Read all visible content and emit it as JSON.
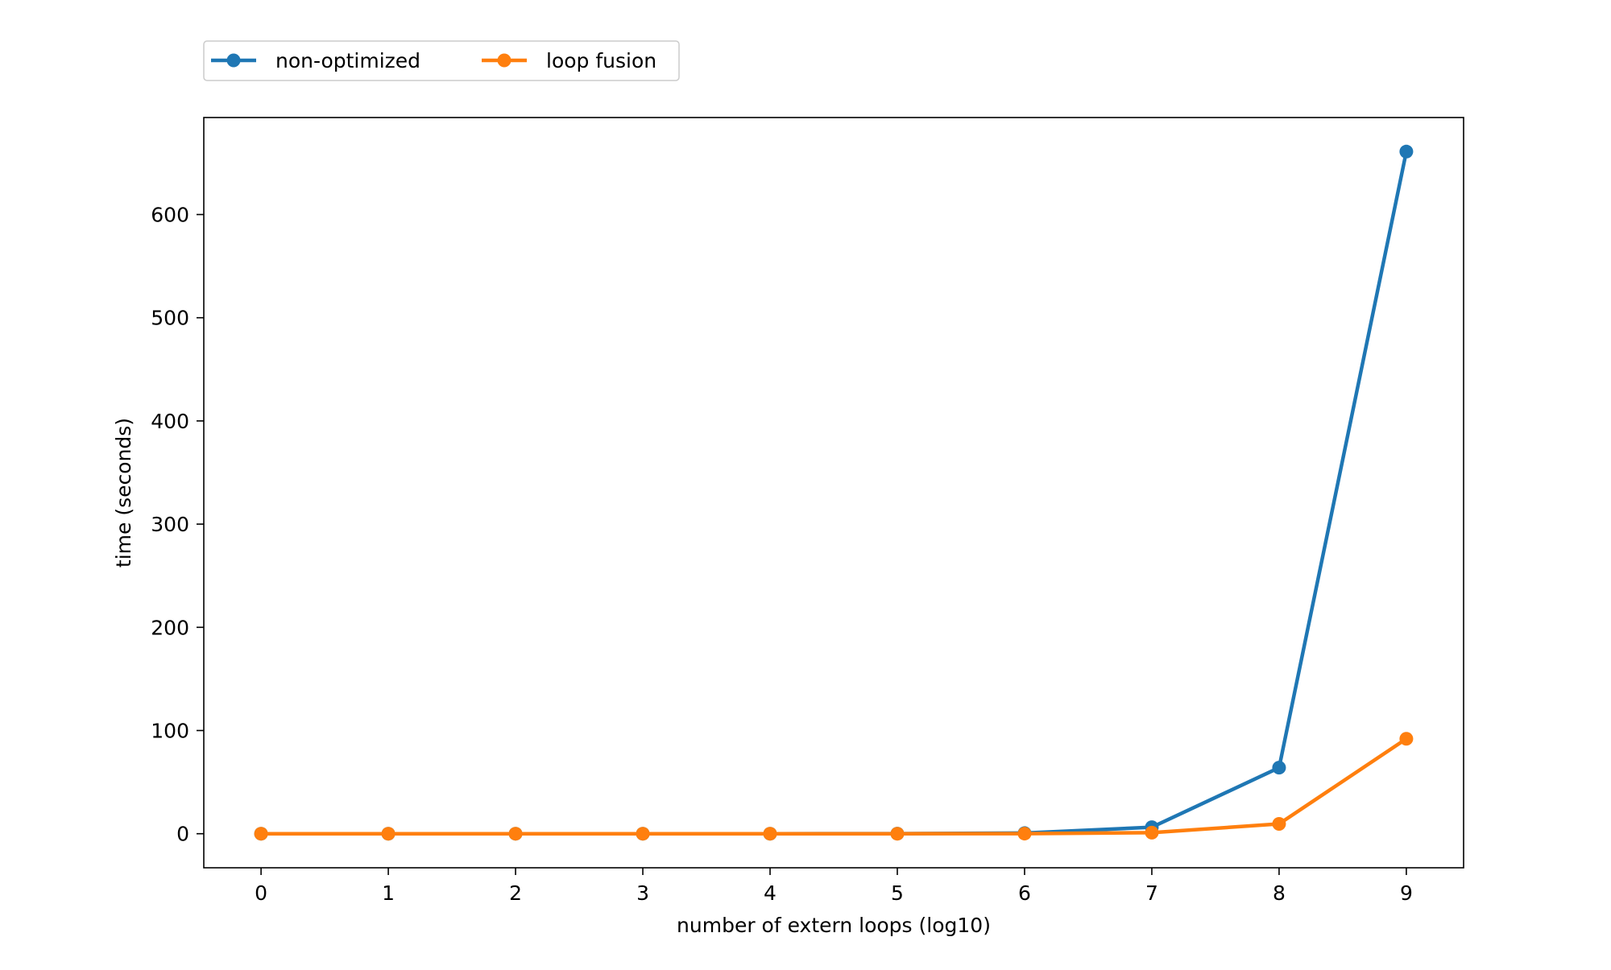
{
  "chart_data": {
    "type": "line",
    "title": "",
    "xlabel": "number of extern loops (log10)",
    "ylabel": "time (seconds)",
    "x": [
      0,
      1,
      2,
      3,
      4,
      5,
      6,
      7,
      8,
      9
    ],
    "xlim": [
      -0.45,
      9.45
    ],
    "ylim": [
      -33,
      694
    ],
    "xticks": [
      0,
      1,
      2,
      3,
      4,
      5,
      6,
      7,
      8,
      9
    ],
    "yticks": [
      0,
      100,
      200,
      300,
      400,
      500,
      600
    ],
    "grid": false,
    "legend_position": "above-left",
    "series": [
      {
        "name": "non-optimized",
        "color": "#1f77b4",
        "marker": "circle",
        "values": [
          0.0,
          0.0,
          0.0,
          0.0,
          0.0,
          0.1,
          0.6,
          6.3,
          64.0,
          661.0
        ]
      },
      {
        "name": "loop fusion",
        "color": "#ff7f0e",
        "marker": "circle",
        "values": [
          0.0,
          0.0,
          0.0,
          0.0,
          0.0,
          0.0,
          0.1,
          1.0,
          9.5,
          92.0
        ]
      }
    ]
  }
}
